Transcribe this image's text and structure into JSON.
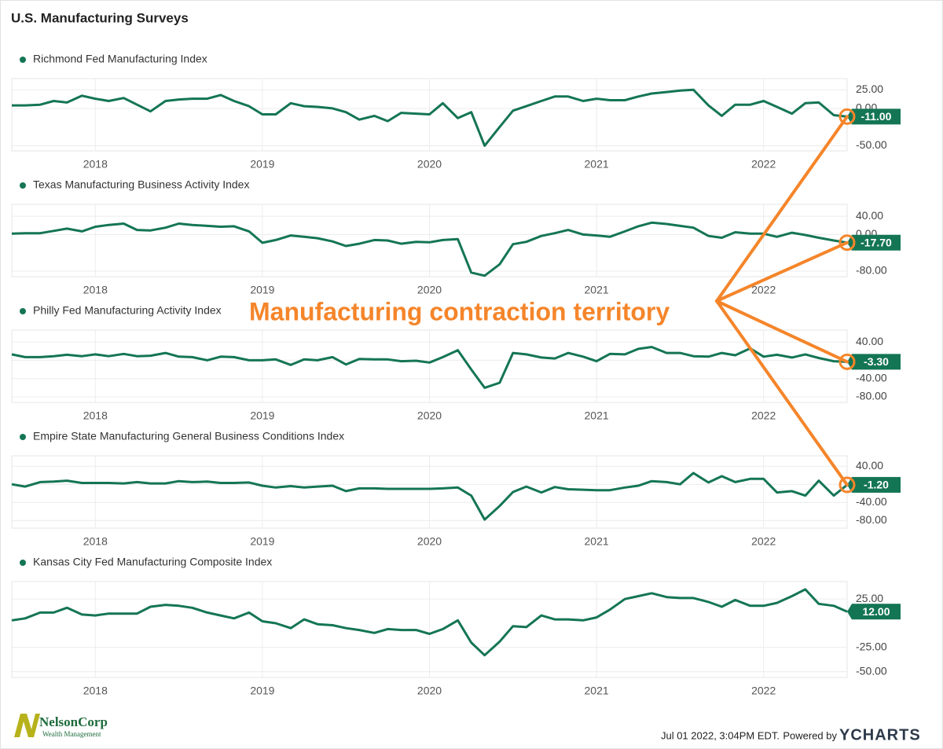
{
  "title": "U.S. Manufacturing Surveys",
  "annotation": "Manufacturing contraction territory",
  "footer": {
    "timestamp": "Jul 01 2022, 3:04PM EDT.",
    "powered_by": "Powered by",
    "brand": "YCHARTS"
  },
  "logo": {
    "name": "NelsonCorp",
    "tagline": "Wealth Management"
  },
  "chart_data": [
    {
      "type": "line",
      "x": [
        2017.5,
        2017.58,
        2017.67,
        2017.75,
        2017.83,
        2017.92,
        2018,
        2018.08,
        2018.17,
        2018.25,
        2018.33,
        2018.42,
        2018.5,
        2018.58,
        2018.67,
        2018.75,
        2018.83,
        2018.92,
        2019,
        2019.08,
        2019.17,
        2019.25,
        2019.33,
        2019.42,
        2019.5,
        2019.58,
        2019.67,
        2019.75,
        2019.83,
        2019.92,
        2020,
        2020.08,
        2020.17,
        2020.25,
        2020.33,
        2020.42,
        2020.5,
        2020.58,
        2020.67,
        2020.75,
        2020.83,
        2020.92,
        2021,
        2021.08,
        2021.17,
        2021.25,
        2021.33,
        2021.42,
        2021.5,
        2021.58,
        2021.67,
        2021.75,
        2021.83,
        2021.92,
        2022,
        2022.08,
        2022.17,
        2022.25,
        2022.33,
        2022.42,
        2022.5
      ],
      "xlim": [
        2017.5,
        2022.5
      ],
      "xticks": [
        2018,
        2019,
        2020,
        2021,
        2022
      ],
      "ylim": [
        -57,
        40
      ],
      "yticks": [
        {
          "value": 25,
          "label": "25.00"
        },
        {
          "value": 0,
          "label": "0.00"
        },
        {
          "value": -50,
          "label": "-50.00"
        }
      ],
      "grid": true,
      "series": [
        {
          "name": "Richmond Fed Manufacturing Index",
          "color": "#147555",
          "values": [
            4,
            4,
            5,
            10,
            8,
            17,
            13,
            10,
            14,
            5,
            -4,
            10,
            12,
            13,
            13,
            18,
            10,
            3,
            -8,
            -8,
            7,
            3,
            2,
            0,
            -5,
            -15,
            -10,
            -17,
            -6,
            -7,
            -8,
            7,
            -13,
            -5,
            -50,
            -25,
            -3,
            3,
            10,
            16,
            16,
            10,
            13,
            11,
            11,
            16,
            20,
            22,
            24,
            25,
            4,
            -10,
            5,
            5,
            10,
            2,
            -7,
            7,
            8,
            -9,
            -11
          ],
          "value_labels": {
            "60": "-11.00"
          }
        }
      ]
    },
    {
      "type": "line",
      "x": [
        2017.5,
        2017.58,
        2017.67,
        2017.75,
        2017.83,
        2017.92,
        2018,
        2018.08,
        2018.17,
        2018.25,
        2018.33,
        2018.42,
        2018.5,
        2018.58,
        2018.67,
        2018.75,
        2018.83,
        2018.92,
        2019,
        2019.08,
        2019.17,
        2019.25,
        2019.33,
        2019.42,
        2019.5,
        2019.58,
        2019.67,
        2019.75,
        2019.83,
        2019.92,
        2020,
        2020.08,
        2020.17,
        2020.25,
        2020.33,
        2020.42,
        2020.5,
        2020.58,
        2020.67,
        2020.75,
        2020.83,
        2020.92,
        2021,
        2021.08,
        2021.17,
        2021.25,
        2021.33,
        2021.42,
        2021.5,
        2021.58,
        2021.67,
        2021.75,
        2021.83,
        2021.92,
        2022,
        2022.08,
        2022.17,
        2022.25,
        2022.33,
        2022.42,
        2022.5
      ],
      "xlim": [
        2017.5,
        2022.5
      ],
      "xticks": [
        2018,
        2019,
        2020,
        2021,
        2022
      ],
      "ylim": [
        -92,
        66
      ],
      "yticks": [
        {
          "value": 40,
          "label": "40.00"
        },
        {
          "value": 0,
          "label": "0.00"
        },
        {
          "value": -80,
          "label": "-80.00"
        }
      ],
      "grid": true,
      "series": [
        {
          "name": "Texas Manufacturing Business Activity Index",
          "color": "#147555",
          "values": [
            2,
            3,
            3,
            8,
            13,
            7,
            17,
            21,
            24,
            10,
            9,
            15,
            24,
            21,
            19,
            17,
            18,
            7,
            -18,
            -12,
            -2,
            -5,
            -8,
            -15,
            -25,
            -20,
            -12,
            -13,
            -20,
            -16,
            -17,
            -12,
            -10,
            -83,
            -90,
            -65,
            -21,
            -16,
            -3,
            3,
            10,
            0,
            -2,
            -5,
            7,
            18,
            26,
            23,
            19,
            15,
            -3,
            -7,
            5,
            2,
            2,
            -5,
            4,
            -1,
            -7,
            -13,
            -17.7
          ],
          "value_labels": {
            "60": "-17.70"
          }
        }
      ]
    },
    {
      "type": "line",
      "x": [
        2017.5,
        2017.58,
        2017.67,
        2017.75,
        2017.83,
        2017.92,
        2018,
        2018.08,
        2018.17,
        2018.25,
        2018.33,
        2018.42,
        2018.5,
        2018.58,
        2018.67,
        2018.75,
        2018.83,
        2018.92,
        2019,
        2019.08,
        2019.17,
        2019.25,
        2019.33,
        2019.42,
        2019.5,
        2019.58,
        2019.67,
        2019.75,
        2019.83,
        2019.92,
        2020,
        2020.08,
        2020.17,
        2020.25,
        2020.33,
        2020.42,
        2020.5,
        2020.58,
        2020.67,
        2020.75,
        2020.83,
        2020.92,
        2021,
        2021.08,
        2021.17,
        2021.25,
        2021.33,
        2021.42,
        2021.5,
        2021.58,
        2021.67,
        2021.75,
        2021.83,
        2021.92,
        2022,
        2022.08,
        2022.17,
        2022.25,
        2022.33,
        2022.42,
        2022.5
      ],
      "xlim": [
        2017.5,
        2022.5
      ],
      "xticks": [
        2018,
        2019,
        2020,
        2021,
        2022
      ],
      "ylim": [
        -92,
        66
      ],
      "yticks": [
        {
          "value": 40,
          "label": "40.00"
        },
        {
          "value": 0,
          "label": "0.00"
        },
        {
          "value": -40,
          "label": "-40.00"
        },
        {
          "value": -80,
          "label": "-80.00"
        }
      ],
      "grid": true,
      "series": [
        {
          "name": "Philly Fed Manufacturing Activity Index",
          "color": "#147555",
          "values": [
            13,
            7,
            7,
            9,
            12,
            9,
            13,
            9,
            14,
            9,
            10,
            16,
            8,
            7,
            0,
            8,
            7,
            0,
            0,
            2,
            -10,
            2,
            0,
            7,
            -9,
            3,
            2,
            2,
            -2,
            -1,
            -5,
            7,
            22,
            -20,
            -60,
            -49,
            16,
            13,
            6,
            4,
            16,
            8,
            -2,
            14,
            13,
            25,
            29,
            16,
            16,
            9,
            8,
            16,
            11,
            26,
            8,
            12,
            6,
            13,
            5,
            -2,
            -3.3
          ],
          "value_labels": {
            "60": "-3.30"
          }
        }
      ]
    },
    {
      "type": "line",
      "x": [
        2017.5,
        2017.58,
        2017.67,
        2017.75,
        2017.83,
        2017.92,
        2018,
        2018.08,
        2018.17,
        2018.25,
        2018.33,
        2018.42,
        2018.5,
        2018.58,
        2018.67,
        2018.75,
        2018.83,
        2018.92,
        2019,
        2019.08,
        2019.17,
        2019.25,
        2019.33,
        2019.42,
        2019.5,
        2019.58,
        2019.67,
        2019.75,
        2019.83,
        2019.92,
        2020,
        2020.08,
        2020.17,
        2020.25,
        2020.33,
        2020.42,
        2020.5,
        2020.58,
        2020.67,
        2020.75,
        2020.83,
        2020.92,
        2021,
        2021.08,
        2021.17,
        2021.25,
        2021.33,
        2021.42,
        2021.5,
        2021.58,
        2021.67,
        2021.75,
        2021.83,
        2021.92,
        2022,
        2022.08,
        2022.17,
        2022.25,
        2022.33,
        2022.42,
        2022.5
      ],
      "xlim": [
        2017.5,
        2022.5
      ],
      "xticks": [
        2018,
        2019,
        2020,
        2021,
        2022
      ],
      "ylim": [
        -97,
        63
      ],
      "yticks": [
        {
          "value": 40,
          "label": "40.00"
        },
        {
          "value": 0,
          "label": "0.00"
        },
        {
          "value": -40,
          "label": "-40.00"
        },
        {
          "value": -80,
          "label": "-80.00"
        }
      ],
      "grid": true,
      "series": [
        {
          "name": "Empire State Manufacturing General Business Conditions Index",
          "color": "#147555",
          "values": [
            0,
            -5,
            5,
            6,
            8,
            3,
            3,
            3,
            2,
            5,
            2,
            2,
            7,
            5,
            6,
            3,
            3,
            4,
            -3,
            -7,
            -4,
            -7,
            -5,
            -3,
            -15,
            -9,
            -9,
            -10,
            -10,
            -10,
            -10,
            -9,
            -7,
            -25,
            -78,
            -48,
            -17,
            -5,
            -18,
            -6,
            -11,
            -12,
            -13,
            -13,
            -7,
            -3,
            7,
            5,
            0,
            25,
            4,
            18,
            5,
            12,
            12,
            -18,
            -15,
            -25,
            8,
            -25,
            -1.2
          ],
          "value_labels": {
            "60": "-1.20"
          }
        }
      ]
    },
    {
      "type": "line",
      "x": [
        2017.5,
        2017.58,
        2017.67,
        2017.75,
        2017.83,
        2017.92,
        2018,
        2018.08,
        2018.17,
        2018.25,
        2018.33,
        2018.42,
        2018.5,
        2018.58,
        2018.67,
        2018.75,
        2018.83,
        2018.92,
        2019,
        2019.08,
        2019.17,
        2019.25,
        2019.33,
        2019.42,
        2019.5,
        2019.58,
        2019.67,
        2019.75,
        2019.83,
        2019.92,
        2020,
        2020.08,
        2020.17,
        2020.25,
        2020.33,
        2020.42,
        2020.5,
        2020.58,
        2020.67,
        2020.75,
        2020.83,
        2020.92,
        2021,
        2021.08,
        2021.17,
        2021.25,
        2021.33,
        2021.42,
        2021.5,
        2021.58,
        2021.67,
        2021.75,
        2021.83,
        2021.92,
        2022,
        2022.08,
        2022.17,
        2022.25,
        2022.33,
        2022.42,
        2022.5
      ],
      "xlim": [
        2017.5,
        2022.5
      ],
      "xticks": [
        2018,
        2019,
        2020,
        2021,
        2022
      ],
      "ylim": [
        -56,
        43
      ],
      "yticks": [
        {
          "value": 25,
          "label": "25.00"
        },
        {
          "value": -25,
          "label": "-25.00"
        },
        {
          "value": -50,
          "label": "-50.00"
        }
      ],
      "grid": true,
      "series": [
        {
          "name": "Kansas City Fed Manufacturing Composite Index",
          "color": "#147555",
          "values": [
            3,
            5,
            11,
            11,
            16,
            9,
            8,
            10,
            10,
            10,
            17,
            19,
            18,
            16,
            11,
            8,
            5,
            11,
            2,
            0,
            -5,
            4,
            -1,
            -2,
            -5,
            -7,
            -10,
            -6,
            -7,
            -7,
            -11,
            -6,
            3,
            -20,
            -33,
            -19,
            -3,
            -4,
            8,
            4,
            4,
            3,
            6,
            14,
            25,
            28,
            31,
            27,
            26,
            26,
            22,
            17,
            24,
            18,
            18,
            21,
            28,
            35,
            20,
            18,
            12
          ],
          "value_labels": {
            "60": "12.00"
          }
        }
      ]
    }
  ]
}
